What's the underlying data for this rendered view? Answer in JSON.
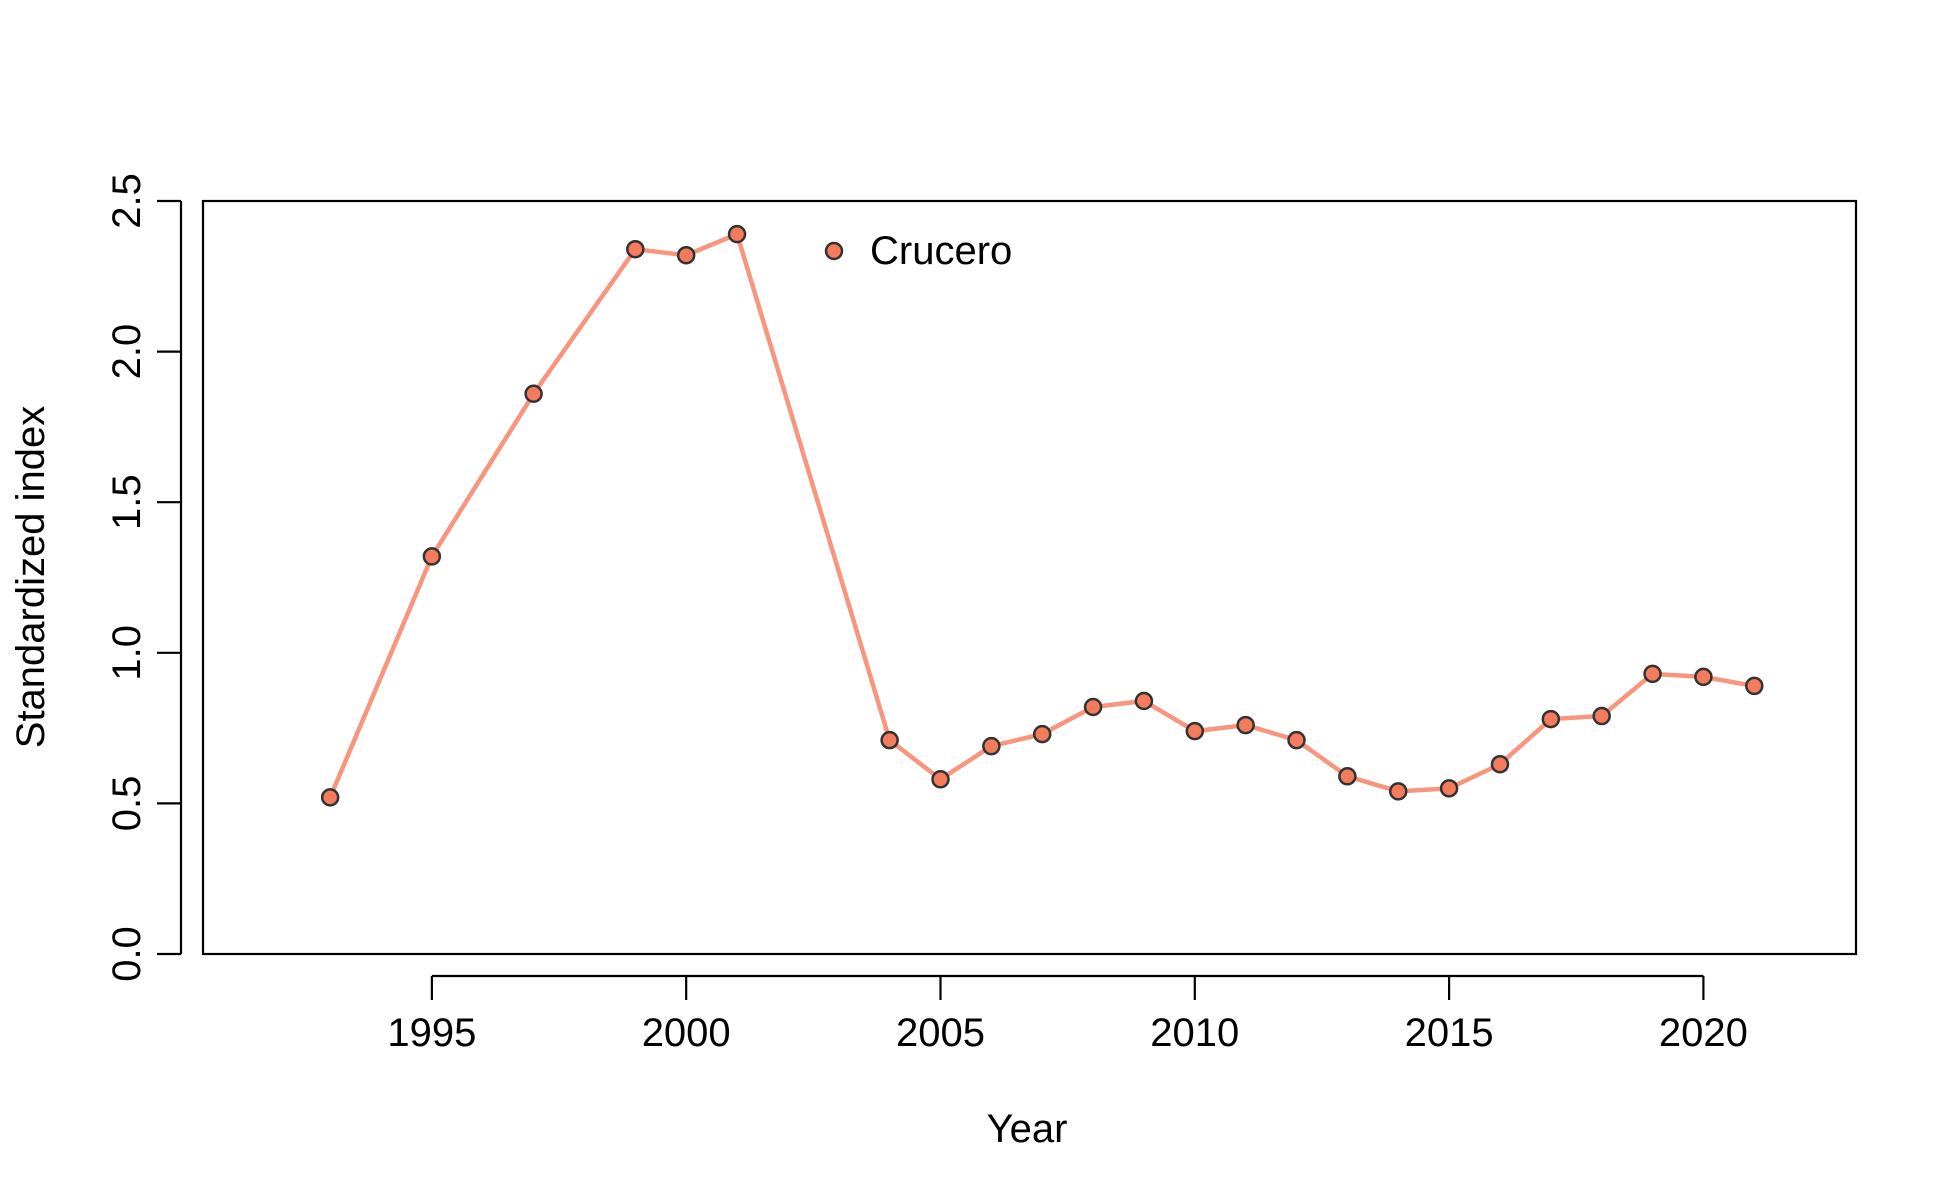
{
  "chart_data": {
    "type": "line",
    "title": "",
    "xlabel": "Year",
    "ylabel": "Standardized index",
    "xlim": [
      1990.5,
      2023
    ],
    "ylim": [
      0,
      2.5
    ],
    "x_ticks": [
      1995,
      2000,
      2005,
      2010,
      2015,
      2020
    ],
    "y_ticks": [
      0.0,
      0.5,
      1.0,
      1.5,
      2.0,
      2.5
    ],
    "y_tick_labels": [
      "0.0",
      "0.5",
      "1.0",
      "1.5",
      "2.0",
      "2.5"
    ],
    "grid": false,
    "legend_position": "top-center",
    "series": [
      {
        "name": "Crucero",
        "line_color": "#f9957d",
        "marker_fill": "#f47b5c",
        "marker_edge": "#333333",
        "x": [
          1993,
          1995,
          1997,
          1999,
          2000,
          2001,
          2004,
          2005,
          2006,
          2007,
          2008,
          2009,
          2010,
          2011,
          2012,
          2013,
          2014,
          2015,
          2016,
          2017,
          2018,
          2019,
          2020,
          2021
        ],
        "y": [
          0.52,
          1.32,
          1.86,
          2.34,
          2.32,
          2.39,
          0.71,
          0.58,
          0.69,
          0.73,
          0.82,
          0.84,
          0.74,
          0.76,
          0.71,
          0.59,
          0.54,
          0.55,
          0.63,
          0.78,
          0.79,
          0.93,
          0.92,
          0.89
        ]
      }
    ]
  }
}
